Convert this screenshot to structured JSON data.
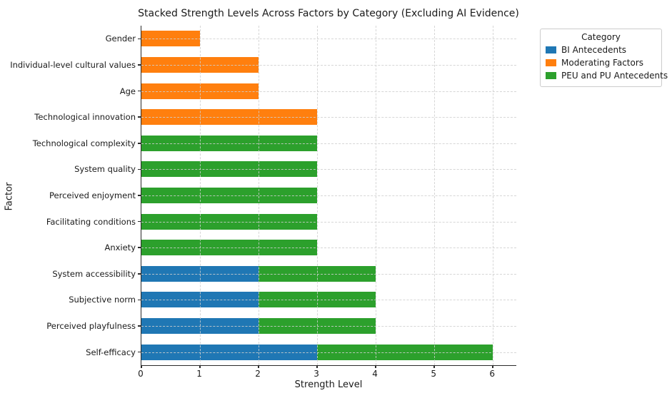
{
  "figure": {
    "title": "Stacked Strength Levels Across Factors by Category (Excluding AI Evidence)",
    "xlabel": "Strength Level",
    "ylabel": "Factor"
  },
  "legend": {
    "title": "Category",
    "entries": [
      {
        "label": "BI Antecedents",
        "color": "#1f77b4"
      },
      {
        "label": "Moderating Factors",
        "color": "#ff7f0e"
      },
      {
        "label": "PEU and PU Antecedents",
        "color": "#2ca02c"
      }
    ]
  },
  "chart_data": {
    "type": "bar",
    "orientation": "horizontal",
    "stacked": true,
    "title": "Stacked Strength Levels Across Factors by Category (Excluding AI Evidence)",
    "xlabel": "Strength Level",
    "ylabel": "Factor",
    "xlim": [
      0,
      6.4
    ],
    "xticks": [
      0,
      1,
      2,
      3,
      4,
      5,
      6
    ],
    "grid": true,
    "grid_style": "dashed",
    "legend_title": "Category",
    "legend_position": "upper-right-outside",
    "categories": [
      "Gender",
      "Individual-level cultural values",
      "Age",
      "Technological innovation",
      "Technological complexity",
      "System quality",
      "Perceived enjoyment",
      "Facilitating conditions",
      "Anxiety",
      "System accessibility",
      "Subjective norm",
      "Perceived playfulness",
      "Self-efficacy"
    ],
    "series": [
      {
        "name": "BI Antecedents",
        "color": "#1f77b4",
        "values": [
          0,
          0,
          0,
          0,
          0,
          0,
          0,
          0,
          0,
          2,
          2,
          2,
          3
        ]
      },
      {
        "name": "Moderating Factors",
        "color": "#ff7f0e",
        "values": [
          1,
          2,
          2,
          3,
          0,
          0,
          0,
          0,
          0,
          0,
          0,
          0,
          0
        ]
      },
      {
        "name": "PEU and PU Antecedents",
        "color": "#2ca02c",
        "values": [
          0,
          0,
          0,
          0,
          3,
          3,
          3,
          3,
          3,
          2,
          2,
          2,
          3
        ]
      }
    ],
    "totals": [
      1,
      2,
      2,
      3,
      3,
      3,
      3,
      3,
      3,
      4,
      4,
      4,
      6
    ]
  }
}
